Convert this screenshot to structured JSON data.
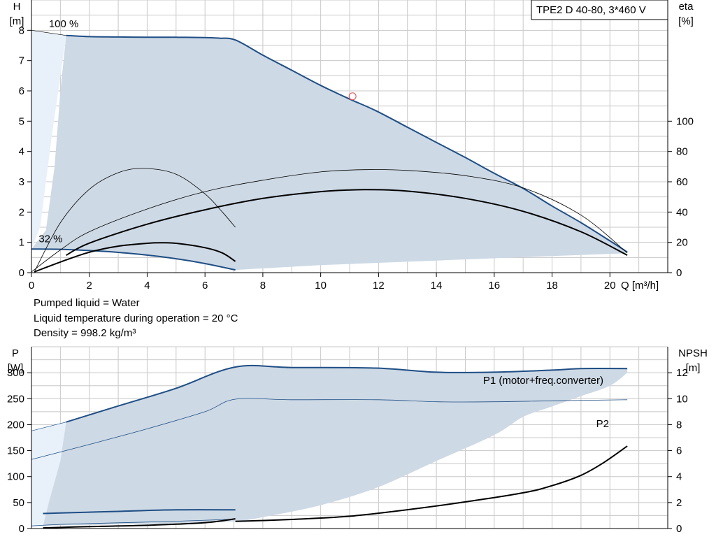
{
  "header": {
    "title": "TPE2 D 40-80, 3*460 V"
  },
  "pumped_info": {
    "liquid": "Pumped liquid = Water",
    "temperature": "Liquid temperature during operation = 20 °C",
    "density": "Density = 998.2 kg/m³"
  },
  "colors": {
    "curve_blue": "#1f4e85",
    "region_fill": "#cdd9e5",
    "region_light": "#e8f1fa",
    "grid": "#c8c8c8",
    "black": "#000000",
    "marker": "#e05050"
  },
  "chart_data": [
    {
      "type": "line",
      "name": "head-efficiency",
      "xlabel": "Q [m³/h]",
      "ylabel": "H\n[m]",
      "y2label": "eta\n[%]",
      "xlim": [
        0,
        22
      ],
      "ylim": [
        0,
        9
      ],
      "y2lim": [
        0,
        180
      ],
      "x_ticks": [
        0,
        2,
        4,
        6,
        8,
        10,
        12,
        14,
        16,
        18,
        20
      ],
      "y_ticks": [
        0,
        1,
        2,
        3,
        4,
        5,
        6,
        7,
        8
      ],
      "y2_ticks": [
        0,
        20,
        40,
        60,
        80,
        100
      ],
      "grid": true,
      "annotations": [
        {
          "text": "100 %",
          "x": 0.6,
          "y": 8.1
        },
        {
          "text": "32 %",
          "x": 0.25,
          "y": 1.0
        }
      ],
      "series": [
        {
          "name": "100 %",
          "role": "head_max",
          "color": "#1f4e85",
          "width": 2,
          "x": [
            1.2,
            2,
            3,
            4,
            5,
            6,
            6.5,
            7.05,
            8,
            9,
            10,
            11,
            11.9,
            13,
            14,
            15,
            16,
            17,
            18,
            19,
            20,
            20.6
          ],
          "y": [
            7.83,
            7.79,
            7.78,
            7.77,
            7.77,
            7.76,
            7.74,
            7.68,
            7.18,
            6.68,
            6.18,
            5.73,
            5.35,
            4.8,
            4.3,
            3.8,
            3.28,
            2.78,
            2.2,
            1.65,
            1.05,
            0.68
          ]
        },
        {
          "name": "32 %",
          "role": "head_min",
          "color": "#1f4e85",
          "width": 2,
          "x": [
            0,
            1,
            2,
            3,
            4,
            5,
            6,
            7.05
          ],
          "y": [
            0.78,
            0.77,
            0.73,
            0.67,
            0.58,
            0.46,
            0.3,
            0.09
          ]
        },
        {
          "name": "",
          "role": "eta_total_max",
          "color": "#000000",
          "width": 2,
          "x": [
            1.2,
            2,
            4,
            6,
            8,
            10,
            11.5,
            13,
            15,
            17,
            19,
            20.6
          ],
          "y": [
            11.5,
            19.5,
            32,
            41.5,
            49,
            53.5,
            54.8,
            53.8,
            49,
            40.5,
            27,
            11.5
          ]
        },
        {
          "name": "",
          "role": "eta_total_min",
          "color": "#000000",
          "width": 2,
          "x": [
            0.1,
            1,
            2,
            3,
            4,
            4.5,
            5,
            6,
            6.6,
            7.05
          ],
          "y": [
            0.5,
            7,
            13.5,
            17.5,
            19.4,
            19.7,
            19.4,
            16.5,
            13,
            7.5
          ]
        },
        {
          "name": "",
          "role": "eta_pump_max",
          "color": "#000000",
          "width": 0.8,
          "x": [
            0,
            1,
            2,
            4,
            6,
            8,
            10,
            11.5,
            13,
            15,
            17,
            19,
            20.6
          ],
          "y": [
            0.5,
            15,
            27,
            42,
            53.5,
            61,
            66.5,
            68,
            67.5,
            64,
            56,
            38,
            13
          ]
        },
        {
          "name": "",
          "role": "eta_pump_min",
          "color": "#000000",
          "width": 0.8,
          "x": [
            0.1,
            1,
            2,
            3,
            3.9,
            5,
            6,
            6.6,
            7.05
          ],
          "y": [
            0.5,
            33,
            55,
            66,
            68.8,
            65,
            52,
            40,
            30
          ]
        }
      ],
      "operating_point": {
        "x": 11.1,
        "y": 5.82
      },
      "region": {
        "upper": "100 %",
        "lower_x": [
          1.2,
          0,
          7.05,
          20.6
        ],
        "lower_y": [
          7.83,
          0.78,
          0.09,
          0.68
        ],
        "lower_boundary_x": [
          7.05,
          10,
          14,
          18,
          20.6
        ],
        "lower_boundary_y": [
          0.09,
          0.25,
          0.4,
          0.55,
          0.64
        ]
      }
    },
    {
      "type": "line",
      "name": "power-npsh",
      "ylabel": "P\n[W]",
      "y2label": "NPSH\n[m]",
      "xlim": [
        0,
        22
      ],
      "ylim": [
        0,
        350
      ],
      "y2lim": [
        0,
        14
      ],
      "y_ticks": [
        0,
        50,
        100,
        150,
        200,
        250,
        300
      ],
      "y2_ticks": [
        0,
        2,
        4,
        6,
        8,
        10,
        12
      ],
      "grid": true,
      "series": [
        {
          "name": "P1 (motor+freq.converter)",
          "role": "p1_max",
          "color": "#1f4e85",
          "width": 2,
          "x": [
            1.2,
            3,
            5,
            7.05,
            9,
            11.9,
            14,
            16,
            18,
            19,
            20.6
          ],
          "y": [
            205,
            236,
            270,
            311,
            310,
            309,
            301,
            301,
            305,
            308,
            308
          ]
        },
        {
          "name": "P2",
          "role": "p2_max",
          "color": "#1f4e85",
          "width": 0.8,
          "x": [
            0,
            2,
            4,
            6,
            7.05,
            9,
            12,
            14,
            16,
            18,
            20.6
          ],
          "y": [
            133,
            162,
            192,
            225,
            249,
            248,
            248,
            244,
            244,
            246,
            248
          ]
        },
        {
          "name": "",
          "role": "p1_min",
          "color": "#1f4e85",
          "width": 2,
          "x": [
            0.4,
            1,
            3,
            5,
            7.05
          ],
          "y": [
            29,
            30,
            33,
            36,
            36
          ]
        },
        {
          "name": "",
          "role": "p2_min",
          "color": "#1f4e85",
          "width": 0.8,
          "x": [
            0,
            1,
            3,
            5,
            7.05
          ],
          "y": [
            5,
            8,
            11,
            14,
            18
          ]
        },
        {
          "name": "",
          "role": "npsh_main",
          "color": "#000000",
          "width": 2,
          "x": [
            7.05,
            9,
            11,
            13,
            15,
            17,
            18,
            19,
            19.8,
            20.6
          ],
          "y": [
            0.55,
            0.7,
            0.95,
            1.45,
            2.05,
            2.75,
            3.3,
            4.1,
            5.1,
            6.35
          ]
        },
        {
          "name": "",
          "role": "npsh_low",
          "color": "#000000",
          "width": 2,
          "x": [
            0.4,
            2,
            4,
            6,
            7.05
          ],
          "y": [
            0.05,
            0.15,
            0.25,
            0.45,
            0.75
          ]
        }
      ],
      "region_upper_x": [
        1.2,
        3,
        5,
        7.05,
        9,
        11.9,
        14,
        16,
        18,
        19,
        20.6
      ],
      "region_upper_y": [
        205,
        236,
        270,
        311,
        310,
        309,
        301,
        301,
        305,
        308,
        308
      ],
      "region_lower_x": [
        20.6,
        20,
        19,
        18,
        17,
        16,
        14,
        12,
        10,
        8,
        7.05,
        5,
        3,
        1,
        0.4
      ],
      "region_lower_y": [
        300,
        275,
        255,
        235,
        215,
        180,
        130,
        80,
        45,
        22,
        14,
        10,
        8,
        6,
        5
      ]
    }
  ]
}
